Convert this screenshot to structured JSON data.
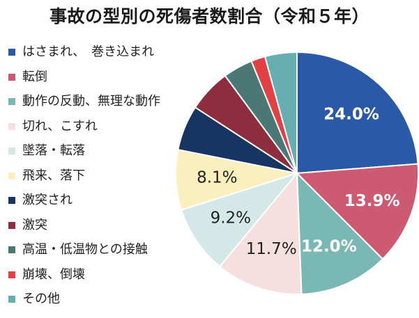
{
  "chart_data": {
    "type": "pie",
    "title": "事故の型別の死傷者数割合（令和５年）",
    "legend_position": "left",
    "slices": [
      {
        "label": "はさまれ、　巻き込まれ",
        "value": 24.0,
        "display": "24.0%",
        "color": "#2a5aa7",
        "label_color": "#ffffff"
      },
      {
        "label": "転倒",
        "value": 13.9,
        "display": "13.9%",
        "color": "#cd5a70",
        "label_color": "#ffffff"
      },
      {
        "label": "動作の反動、無理な動作",
        "value": 12.0,
        "display": "12.0%",
        "color": "#7ab8b5",
        "label_color": "#ffffff"
      },
      {
        "label": "切れ、こすれ",
        "value": 11.7,
        "display": "11.7%",
        "color": "#f6dfdf",
        "label_color": "#222222"
      },
      {
        "label": "墜落・転落",
        "value": 9.2,
        "display": "9.2%",
        "color": "#d4e8e7",
        "label_color": "#222222"
      },
      {
        "label": "飛来、落下",
        "value": 8.1,
        "display": "8.1%",
        "color": "#fbf0bd",
        "label_color": "#222222"
      },
      {
        "label": "激突され",
        "value": 6.1,
        "display": "",
        "color": "#173463",
        "label_color": "#ffffff"
      },
      {
        "label": "激突",
        "value": 5.8,
        "display": "",
        "color": "#8e2d3d",
        "label_color": "#ffffff"
      },
      {
        "label": "高温・低温物との接触",
        "value": 4.0,
        "display": "",
        "color": "#4b7875",
        "label_color": "#ffffff"
      },
      {
        "label": "崩壊、倒壊",
        "value": 1.9,
        "display": "",
        "color": "#e34043",
        "label_color": "#ffffff"
      },
      {
        "label": "その他",
        "value": 4.3,
        "display": "",
        "color": "#66aeb1",
        "label_color": "#ffffff"
      }
    ]
  }
}
